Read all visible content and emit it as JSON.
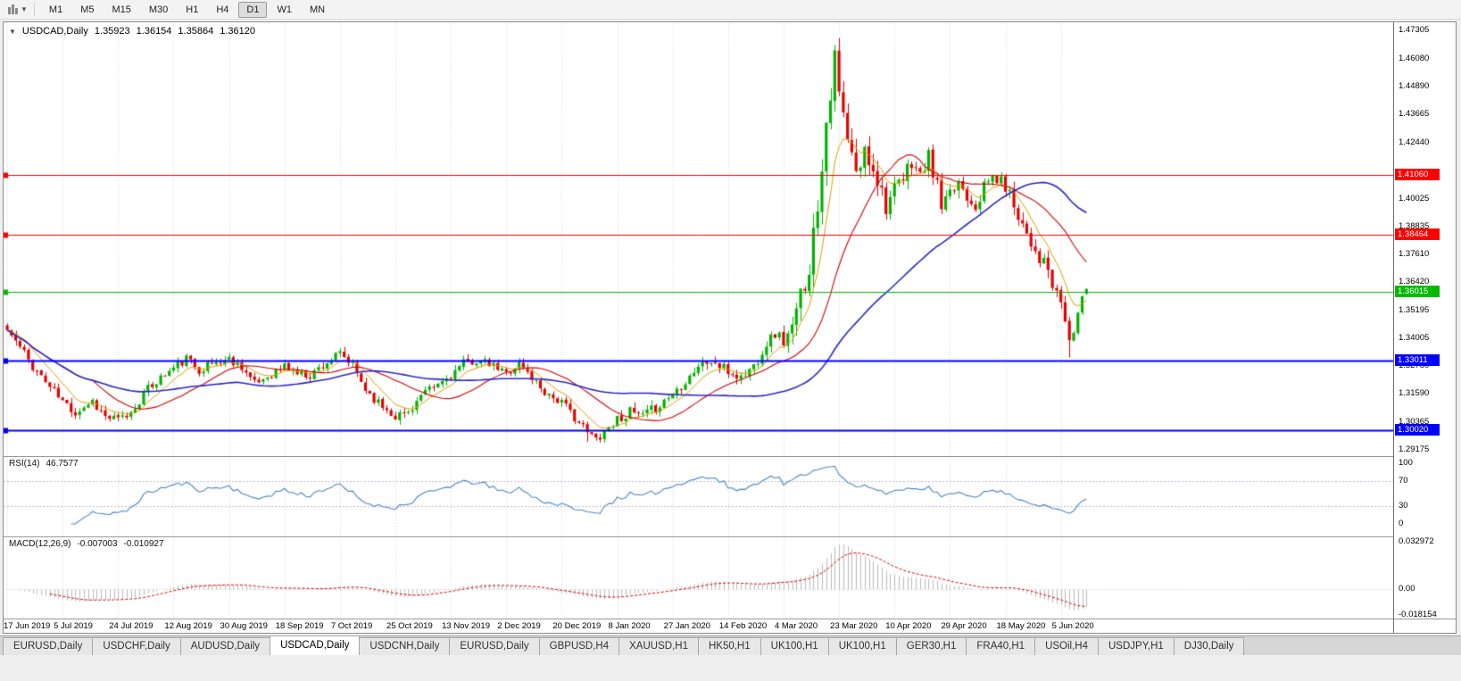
{
  "toolbar": {
    "timeframes": [
      "M1",
      "M5",
      "M15",
      "M30",
      "H1",
      "H4",
      "D1",
      "W1",
      "MN"
    ],
    "active_timeframe": "D1"
  },
  "chart": {
    "title": {
      "symbol": "USDCAD,Daily",
      "open": "1.35923",
      "high": "1.36154",
      "low": "1.35864",
      "close": "1.36120"
    },
    "price_axis_ticks": [
      "1.47305",
      "1.46080",
      "1.44890",
      "1.43665",
      "1.42440",
      "1.40025",
      "1.38835",
      "1.37610",
      "1.36420",
      "1.35195",
      "1.34005",
      "1.32780",
      "1.31590",
      "1.30365",
      "1.29175"
    ],
    "hlines": [
      {
        "price": 1.4106,
        "label": "1.41060",
        "color": "#ff0000",
        "width": 1
      },
      {
        "price": 1.38464,
        "label": "1.38464",
        "color": "#ff0000",
        "width": 1
      },
      {
        "price": 1.36015,
        "label": "1.36015",
        "color": "#00bb00",
        "width": 1
      },
      {
        "price": 1.33011,
        "label": "1.33011",
        "color": "#0000ff",
        "width": 2
      },
      {
        "price": 1.3002,
        "label": "1.30020",
        "color": "#0000ff",
        "width": 2
      }
    ],
    "x_labels": [
      [
        0,
        "17 Jun 2019"
      ],
      [
        13,
        "5 Jul 2019"
      ],
      [
        26,
        "24 Jul 2019"
      ],
      [
        39,
        "12 Aug 2019"
      ],
      [
        52,
        "30 Aug 2019"
      ],
      [
        65,
        "18 Sep 2019"
      ],
      [
        78,
        "7 Oct 2019"
      ],
      [
        91,
        "25 Oct 2019"
      ],
      [
        104,
        "13 Nov 2019"
      ],
      [
        117,
        "2 Dec 2019"
      ],
      [
        130,
        "20 Dec 2019"
      ],
      [
        143,
        "8 Jan 2020"
      ],
      [
        156,
        "27 Jan 2020"
      ],
      [
        169,
        "14 Feb 2020"
      ],
      [
        182,
        "4 Mar 2020"
      ],
      [
        195,
        "23 Mar 2020"
      ],
      [
        208,
        "10 Apr 2020"
      ],
      [
        221,
        "29 Apr 2020"
      ],
      [
        234,
        "18 May 2020"
      ],
      [
        247,
        "5 Jun 2020"
      ]
    ]
  },
  "indicators": {
    "rsi": {
      "name": "RSI(14)",
      "value": "46.7577",
      "color": "#4a86c8",
      "levels": [
        70,
        30
      ],
      "axis": [
        {
          "text": "100",
          "v": 100
        },
        {
          "text": "70",
          "v": 70
        },
        {
          "text": "30",
          "v": 30
        },
        {
          "text": "0",
          "v": 0
        }
      ]
    },
    "macd": {
      "name": "MACD(12,26,9)",
      "value": "-0.007003",
      "signal_value": "-0.010927",
      "signal_color": "#e00000",
      "hist_color": "#b9b9b9",
      "axis": [
        {
          "text": "0.032972",
          "v": 0.032972
        },
        {
          "text": "0.00",
          "v": 0
        },
        {
          "text": "-0.018154",
          "v": -0.018154
        }
      ]
    }
  },
  "chart_data": {
    "type": "candlestick",
    "symbol": "USDCAD",
    "period": "Daily",
    "visible_price_range": {
      "min": 1.289,
      "max": 1.4766
    },
    "bar_count": 254,
    "last_bar": {
      "o": 1.35923,
      "h": 1.36154,
      "l": 1.35864,
      "c": 1.3612
    },
    "close_anchors": [
      [
        0,
        1.3435
      ],
      [
        3,
        1.336
      ],
      [
        6,
        1.328
      ],
      [
        10,
        1.319
      ],
      [
        13,
        1.3125
      ],
      [
        16,
        1.308
      ],
      [
        20,
        1.313
      ],
      [
        23,
        1.306
      ],
      [
        26,
        1.3045
      ],
      [
        29,
        1.3075
      ],
      [
        32,
        1.316
      ],
      [
        35,
        1.3215
      ],
      [
        39,
        1.327
      ],
      [
        42,
        1.331
      ],
      [
        45,
        1.3265
      ],
      [
        48,
        1.329
      ],
      [
        52,
        1.331
      ],
      [
        55,
        1.328
      ],
      [
        58,
        1.32
      ],
      [
        61,
        1.3235
      ],
      [
        65,
        1.328
      ],
      [
        68,
        1.325
      ],
      [
        71,
        1.324
      ],
      [
        74,
        1.3285
      ],
      [
        78,
        1.333
      ],
      [
        81,
        1.328
      ],
      [
        84,
        1.318
      ],
      [
        87,
        1.312
      ],
      [
        91,
        1.3065
      ],
      [
        94,
        1.308
      ],
      [
        97,
        1.315
      ],
      [
        100,
        1.3185
      ],
      [
        104,
        1.324
      ],
      [
        107,
        1.329
      ],
      [
        110,
        1.3305
      ],
      [
        113,
        1.3285
      ],
      [
        117,
        1.325
      ],
      [
        120,
        1.329
      ],
      [
        123,
        1.323
      ],
      [
        126,
        1.317
      ],
      [
        130,
        1.312
      ],
      [
        133,
        1.306
      ],
      [
        136,
        1.299
      ],
      [
        138,
        1.2965
      ],
      [
        140,
        1.3
      ],
      [
        143,
        1.305
      ],
      [
        146,
        1.308
      ],
      [
        149,
        1.306
      ],
      [
        152,
        1.31
      ],
      [
        156,
        1.316
      ],
      [
        159,
        1.322
      ],
      [
        162,
        1.328
      ],
      [
        165,
        1.33
      ],
      [
        169,
        1.3255
      ],
      [
        172,
        1.323
      ],
      [
        175,
        1.328
      ],
      [
        178,
        1.338
      ],
      [
        180,
        1.342
      ],
      [
        182,
        1.339
      ],
      [
        184,
        1.343
      ],
      [
        186,
        1.358
      ],
      [
        188,
        1.372
      ],
      [
        190,
        1.398
      ],
      [
        192,
        1.435
      ],
      [
        194,
        1.46
      ],
      [
        195,
        1.445
      ],
      [
        197,
        1.425
      ],
      [
        199,
        1.41
      ],
      [
        201,
        1.42
      ],
      [
        203,
        1.415
      ],
      [
        205,
        1.404
      ],
      [
        206,
        1.398
      ],
      [
        208,
        1.403
      ],
      [
        210,
        1.408
      ],
      [
        212,
        1.417
      ],
      [
        214,
        1.41
      ],
      [
        216,
        1.418
      ],
      [
        218,
        1.406
      ],
      [
        219,
        1.396
      ],
      [
        221,
        1.401
      ],
      [
        223,
        1.408
      ],
      [
        225,
        1.402
      ],
      [
        227,
        1.398
      ],
      [
        229,
        1.405
      ],
      [
        231,
        1.41
      ],
      [
        234,
        1.406
      ],
      [
        236,
        1.398
      ],
      [
        238,
        1.39
      ],
      [
        240,
        1.382
      ],
      [
        242,
        1.375
      ],
      [
        244,
        1.369
      ],
      [
        245,
        1.362
      ],
      [
        247,
        1.356
      ],
      [
        248,
        1.347
      ],
      [
        249,
        1.339
      ],
      [
        250,
        1.343
      ],
      [
        251,
        1.351
      ],
      [
        252,
        1.357
      ],
      [
        253,
        1.3612
      ]
    ],
    "volatility_anchors": [
      [
        0,
        0.0045
      ],
      [
        60,
        0.004
      ],
      [
        120,
        0.0038
      ],
      [
        180,
        0.005
      ],
      [
        186,
        0.011
      ],
      [
        196,
        0.012
      ],
      [
        205,
        0.009
      ],
      [
        215,
        0.007
      ],
      [
        230,
        0.006
      ],
      [
        244,
        0.007
      ],
      [
        253,
        0.005
      ]
    ],
    "wick_overrides": {
      "136": {
        "l": 1.2952
      },
      "194": {
        "h": 1.4668
      },
      "249": {
        "l": 1.3316
      }
    },
    "colors": {
      "bull": "#00b300",
      "bear": "#e60000",
      "ma_fast": "#dfa000",
      "ma_mid": "#d40000",
      "ma_slow": "#2828c8"
    }
  },
  "tabbar": {
    "tabs": [
      "EURUSD,Daily",
      "USDCHF,Daily",
      "AUDUSD,Daily",
      "USDCAD,Daily",
      "USDCNH,Daily",
      "EURUSD,Daily",
      "GBPUSD,H4",
      "XAUUSD,H1",
      "HK50,H1",
      "UK100,H1",
      "UK100,H1",
      "GER30,H1",
      "FRA40,H1",
      "USOil,H4",
      "USDJPY,H1",
      "DJ30,Daily"
    ],
    "active_index": 3
  }
}
